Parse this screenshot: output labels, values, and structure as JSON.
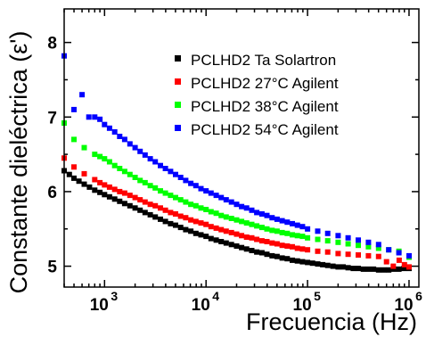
{
  "chart_data": {
    "type": "scatter",
    "title": "",
    "xlabel": "Frecuencia (Hz)",
    "ylabel": "Constante dieléctrica (ε')",
    "xscale": "log",
    "xlim": [
      400,
      1250000
    ],
    "ylim": [
      4.72,
      8.45
    ],
    "x_ticks": [
      {
        "value": 1000,
        "base": "10",
        "exp": "3"
      },
      {
        "value": 10000,
        "base": "10",
        "exp": "4"
      },
      {
        "value": 100000,
        "base": "10",
        "exp": "5"
      },
      {
        "value": 1000000,
        "base": "10",
        "exp": "6"
      }
    ],
    "y_ticks": [
      {
        "value": 5,
        "label": "5"
      },
      {
        "value": 6,
        "label": "6"
      },
      {
        "value": 7,
        "label": "7"
      },
      {
        "value": 8,
        "label": "8"
      }
    ],
    "legend_position": "top-right",
    "grid": false,
    "series": [
      {
        "name": "PCLHD2 Ta Solartron",
        "color": "#000000",
        "points": [
          [
            400,
            6.28
          ],
          [
            450,
            6.23
          ],
          [
            500,
            6.18
          ],
          [
            560,
            6.14
          ],
          [
            630,
            6.1
          ],
          [
            710,
            6.06
          ],
          [
            800,
            6.02
          ],
          [
            900,
            5.99
          ],
          [
            1000,
            5.96
          ],
          [
            1120,
            5.93
          ],
          [
            1260,
            5.9
          ],
          [
            1410,
            5.87
          ],
          [
            1580,
            5.84
          ],
          [
            1780,
            5.81
          ],
          [
            2000,
            5.78
          ],
          [
            2240,
            5.75
          ],
          [
            2510,
            5.72
          ],
          [
            2820,
            5.69
          ],
          [
            3160,
            5.66
          ],
          [
            3550,
            5.63
          ],
          [
            3980,
            5.6
          ],
          [
            4470,
            5.57
          ],
          [
            5010,
            5.55
          ],
          [
            5620,
            5.52
          ],
          [
            6310,
            5.49
          ],
          [
            7080,
            5.47
          ],
          [
            7940,
            5.44
          ],
          [
            8910,
            5.42
          ],
          [
            10000,
            5.4
          ],
          [
            11200,
            5.37
          ],
          [
            12600,
            5.35
          ],
          [
            14100,
            5.33
          ],
          [
            15800,
            5.31
          ],
          [
            17800,
            5.29
          ],
          [
            20000,
            5.27
          ],
          [
            22400,
            5.25
          ],
          [
            25100,
            5.23
          ],
          [
            28200,
            5.21
          ],
          [
            31600,
            5.19
          ],
          [
            35500,
            5.18
          ],
          [
            39800,
            5.16
          ],
          [
            44700,
            5.14
          ],
          [
            50100,
            5.13
          ],
          [
            56200,
            5.11
          ],
          [
            63100,
            5.1
          ],
          [
            70800,
            5.08
          ],
          [
            79400,
            5.07
          ],
          [
            89100,
            5.06
          ],
          [
            100000,
            5.05
          ],
          [
            112000,
            5.04
          ],
          [
            126000,
            5.03
          ],
          [
            141000,
            5.02
          ],
          [
            158000,
            5.01
          ],
          [
            178000,
            5.0
          ],
          [
            200000,
            4.99
          ],
          [
            224000,
            4.99
          ],
          [
            251000,
            4.98
          ],
          [
            282000,
            4.97
          ],
          [
            316000,
            4.97
          ],
          [
            355000,
            4.96
          ],
          [
            398000,
            4.96
          ],
          [
            447000,
            4.96
          ],
          [
            501000,
            4.95
          ],
          [
            562000,
            4.95
          ],
          [
            631000,
            4.95
          ],
          [
            708000,
            4.96
          ],
          [
            794000,
            4.96
          ],
          [
            891000,
            4.97
          ],
          [
            1000000,
            4.97
          ]
        ]
      },
      {
        "name": "PCLHD2 27°C Agilent",
        "color": "#ff0000",
        "points": [
          [
            400,
            6.45
          ],
          [
            500,
            6.33
          ],
          [
            630,
            6.24
          ],
          [
            800,
            6.16
          ],
          [
            900,
            6.12
          ],
          [
            1000,
            6.09
          ],
          [
            1120,
            6.06
          ],
          [
            1260,
            6.03
          ],
          [
            1410,
            6.0
          ],
          [
            1580,
            5.98
          ],
          [
            1780,
            5.95
          ],
          [
            2000,
            5.92
          ],
          [
            2240,
            5.89
          ],
          [
            2510,
            5.86
          ],
          [
            2820,
            5.83
          ],
          [
            3160,
            5.81
          ],
          [
            3550,
            5.78
          ],
          [
            3980,
            5.75
          ],
          [
            4470,
            5.72
          ],
          [
            5010,
            5.7
          ],
          [
            5620,
            5.67
          ],
          [
            6310,
            5.65
          ],
          [
            7080,
            5.62
          ],
          [
            7940,
            5.6
          ],
          [
            8910,
            5.58
          ],
          [
            10000,
            5.56
          ],
          [
            11200,
            5.53
          ],
          [
            12600,
            5.51
          ],
          [
            14100,
            5.49
          ],
          [
            15800,
            5.47
          ],
          [
            17800,
            5.45
          ],
          [
            20000,
            5.43
          ],
          [
            22400,
            5.41
          ],
          [
            25100,
            5.39
          ],
          [
            28200,
            5.38
          ],
          [
            31600,
            5.36
          ],
          [
            35500,
            5.34
          ],
          [
            39800,
            5.33
          ],
          [
            44700,
            5.31
          ],
          [
            50100,
            5.3
          ],
          [
            56200,
            5.28
          ],
          [
            63100,
            5.27
          ],
          [
            70800,
            5.26
          ],
          [
            79400,
            5.24
          ],
          [
            89100,
            5.23
          ],
          [
            100000,
            5.22
          ],
          [
            126000,
            5.2
          ],
          [
            158000,
            5.19
          ],
          [
            200000,
            5.17
          ],
          [
            251000,
            5.16
          ],
          [
            316000,
            5.15
          ],
          [
            398000,
            5.14
          ],
          [
            501000,
            5.13
          ],
          [
            600000,
            5.06
          ],
          [
            700000,
            5.0
          ],
          [
            800000,
            5.08
          ],
          [
            900000,
            5.02
          ],
          [
            1000000,
            4.99
          ]
        ]
      },
      {
        "name": "PCLHD2 38°C Agilent",
        "color": "#00ff00",
        "points": [
          [
            400,
            6.92
          ],
          [
            500,
            6.7
          ],
          [
            630,
            6.59
          ],
          [
            800,
            6.5
          ],
          [
            900,
            6.47
          ],
          [
            1000,
            6.44
          ],
          [
            1120,
            6.4
          ],
          [
            1260,
            6.35
          ],
          [
            1410,
            6.31
          ],
          [
            1580,
            6.27
          ],
          [
            1780,
            6.23
          ],
          [
            2000,
            6.19
          ],
          [
            2240,
            6.15
          ],
          [
            2510,
            6.12
          ],
          [
            2820,
            6.08
          ],
          [
            3160,
            6.05
          ],
          [
            3550,
            6.01
          ],
          [
            3980,
            5.98
          ],
          [
            4470,
            5.95
          ],
          [
            5010,
            5.92
          ],
          [
            5620,
            5.89
          ],
          [
            6310,
            5.86
          ],
          [
            7080,
            5.83
          ],
          [
            7940,
            5.81
          ],
          [
            8910,
            5.78
          ],
          [
            10000,
            5.76
          ],
          [
            11200,
            5.73
          ],
          [
            12600,
            5.71
          ],
          [
            14100,
            5.68
          ],
          [
            15800,
            5.66
          ],
          [
            17800,
            5.64
          ],
          [
            20000,
            5.62
          ],
          [
            22400,
            5.6
          ],
          [
            25100,
            5.58
          ],
          [
            28200,
            5.56
          ],
          [
            31600,
            5.54
          ],
          [
            35500,
            5.52
          ],
          [
            39800,
            5.5
          ],
          [
            44700,
            5.48
          ],
          [
            50100,
            5.47
          ],
          [
            56200,
            5.45
          ],
          [
            63100,
            5.44
          ],
          [
            70800,
            5.42
          ],
          [
            79400,
            5.41
          ],
          [
            89100,
            5.4
          ],
          [
            100000,
            5.38
          ],
          [
            126000,
            5.36
          ],
          [
            158000,
            5.34
          ],
          [
            200000,
            5.32
          ],
          [
            251000,
            5.3
          ],
          [
            316000,
            5.28
          ],
          [
            398000,
            5.26
          ],
          [
            501000,
            5.24
          ],
          [
            631000,
            5.22
          ],
          [
            794000,
            5.2
          ],
          [
            1000000,
            5.12
          ]
        ]
      },
      {
        "name": "PCLHD2 54°C Agilent",
        "color": "#0000ff",
        "points": [
          [
            400,
            7.82
          ],
          [
            500,
            7.1
          ],
          [
            600,
            7.3
          ],
          [
            700,
            7.0
          ],
          [
            800,
            7.0
          ],
          [
            900,
            6.97
          ],
          [
            1000,
            6.9
          ],
          [
            1120,
            6.85
          ],
          [
            1260,
            6.8
          ],
          [
            1410,
            6.74
          ],
          [
            1580,
            6.7
          ],
          [
            1780,
            6.64
          ],
          [
            2000,
            6.59
          ],
          [
            2240,
            6.54
          ],
          [
            2510,
            6.49
          ],
          [
            2820,
            6.44
          ],
          [
            3160,
            6.4
          ],
          [
            3550,
            6.35
          ],
          [
            3980,
            6.31
          ],
          [
            4470,
            6.27
          ],
          [
            5010,
            6.23
          ],
          [
            5620,
            6.19
          ],
          [
            6310,
            6.15
          ],
          [
            7080,
            6.11
          ],
          [
            7940,
            6.08
          ],
          [
            8910,
            6.04
          ],
          [
            10000,
            6.01
          ],
          [
            11200,
            5.98
          ],
          [
            12600,
            5.95
          ],
          [
            14100,
            5.92
          ],
          [
            15800,
            5.89
          ],
          [
            17800,
            5.86
          ],
          [
            20000,
            5.83
          ],
          [
            22400,
            5.8
          ],
          [
            25100,
            5.78
          ],
          [
            28200,
            5.75
          ],
          [
            31600,
            5.72
          ],
          [
            35500,
            5.7
          ],
          [
            39800,
            5.68
          ],
          [
            44700,
            5.65
          ],
          [
            50100,
            5.63
          ],
          [
            56200,
            5.61
          ],
          [
            63100,
            5.59
          ],
          [
            70800,
            5.57
          ],
          [
            79400,
            5.55
          ],
          [
            89100,
            5.53
          ],
          [
            100000,
            5.5
          ],
          [
            126000,
            5.47
          ],
          [
            158000,
            5.44
          ],
          [
            200000,
            5.41
          ],
          [
            251000,
            5.38
          ],
          [
            316000,
            5.35
          ],
          [
            398000,
            5.32
          ],
          [
            501000,
            5.29
          ],
          [
            631000,
            5.22
          ],
          [
            794000,
            5.18
          ],
          [
            1000000,
            5.14
          ]
        ]
      }
    ]
  }
}
